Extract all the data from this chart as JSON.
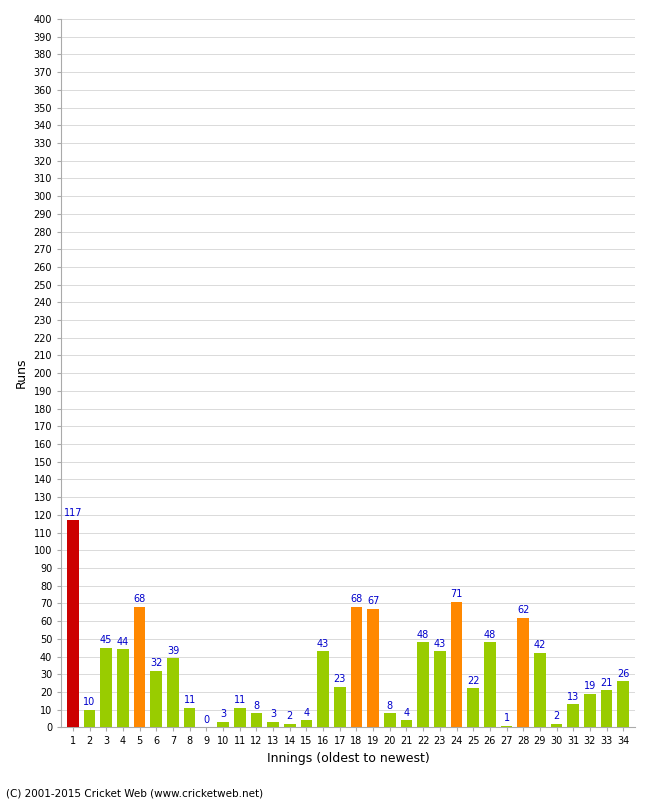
{
  "xlabel": "Innings (oldest to newest)",
  "ylabel": "Runs",
  "ylim": [
    0,
    400
  ],
  "yticks": [
    0,
    10,
    20,
    30,
    40,
    50,
    60,
    70,
    80,
    90,
    100,
    110,
    120,
    130,
    140,
    150,
    160,
    170,
    180,
    190,
    200,
    210,
    220,
    230,
    240,
    250,
    260,
    270,
    280,
    290,
    300,
    310,
    320,
    330,
    340,
    350,
    360,
    370,
    380,
    390,
    400
  ],
  "values": [
    117,
    10,
    45,
    44,
    68,
    32,
    39,
    11,
    0,
    3,
    11,
    8,
    3,
    2,
    4,
    43,
    23,
    68,
    67,
    8,
    4,
    48,
    43,
    71,
    22,
    48,
    1,
    62,
    42,
    2,
    13,
    19,
    21,
    26
  ],
  "colors": [
    "#cc0000",
    "#99cc00",
    "#99cc00",
    "#99cc00",
    "#ff8800",
    "#99cc00",
    "#99cc00",
    "#99cc00",
    "#99cc00",
    "#99cc00",
    "#99cc00",
    "#99cc00",
    "#99cc00",
    "#99cc00",
    "#99cc00",
    "#99cc00",
    "#99cc00",
    "#ff8800",
    "#ff8800",
    "#99cc00",
    "#99cc00",
    "#99cc00",
    "#99cc00",
    "#ff8800",
    "#99cc00",
    "#99cc00",
    "#99cc00",
    "#ff8800",
    "#99cc00",
    "#99cc00",
    "#99cc00",
    "#99cc00",
    "#99cc00",
    "#99cc00"
  ],
  "label_color": "#0000cc",
  "label_fontsize": 7,
  "background_color": "#ffffff",
  "plot_bg_color": "#ffffff",
  "grid_color": "#cccccc",
  "footer": "(C) 2001-2015 Cricket Web (www.cricketweb.net)"
}
